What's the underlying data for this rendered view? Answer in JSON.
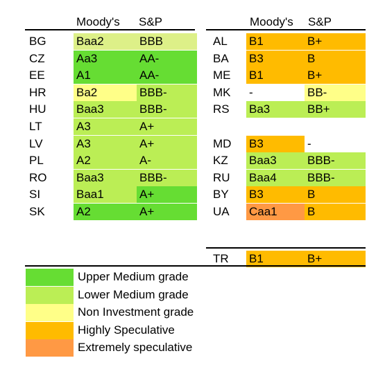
{
  "headers": {
    "moodys": "Moody's",
    "sp": "S&P"
  },
  "left_table": [
    {
      "country": "BG",
      "moodys": "Baa2",
      "sp": "BBB",
      "moodys_color": "pale",
      "sp_color": "pale"
    },
    {
      "country": "CZ",
      "moodys": "Aa3",
      "sp": "AA-",
      "moodys_color": "upper",
      "sp_color": "upper"
    },
    {
      "country": "EE",
      "moodys": "A1",
      "sp": "AA-",
      "moodys_color": "upper",
      "sp_color": "upper"
    },
    {
      "country": "HR",
      "moodys": "Ba2",
      "sp": "BBB-",
      "moodys_color": "non",
      "sp_color": "lower"
    },
    {
      "country": "HU",
      "moodys": "Baa3",
      "sp": "BBB-",
      "moodys_color": "lower",
      "sp_color": "lower"
    },
    {
      "country": "LT",
      "moodys": "A3",
      "sp": "A+",
      "moodys_color": "lower",
      "sp_color": "lower"
    },
    {
      "country": "LV",
      "moodys": "A3",
      "sp": "A+",
      "moodys_color": "lower",
      "sp_color": "lower"
    },
    {
      "country": "PL",
      "moodys": "A2",
      "sp": "A-",
      "moodys_color": "lower",
      "sp_color": "lower"
    },
    {
      "country": "RO",
      "moodys": "Baa3",
      "sp": "BBB-",
      "moodys_color": "lower",
      "sp_color": "lower"
    },
    {
      "country": "SI",
      "moodys": "Baa1",
      "sp": "A+",
      "moodys_color": "lower",
      "sp_color": "upper"
    },
    {
      "country": "SK",
      "moodys": "A2",
      "sp": "A+",
      "moodys_color": "upper",
      "sp_color": "upper"
    }
  ],
  "right_table": [
    {
      "country": "AL",
      "moodys": "B1",
      "sp": "B+",
      "moodys_color": "high",
      "sp_color": "high"
    },
    {
      "country": "BA",
      "moodys": "B3",
      "sp": "B",
      "moodys_color": "high",
      "sp_color": "high"
    },
    {
      "country": "ME",
      "moodys": "B1",
      "sp": "B+",
      "moodys_color": "high",
      "sp_color": "high"
    },
    {
      "country": "MK",
      "moodys": "-",
      "sp": "BB-",
      "moodys_color": "none",
      "sp_color": "non"
    },
    {
      "country": "RS",
      "moodys": "Ba3",
      "sp": "BB+",
      "moodys_color": "lower",
      "sp_color": "lower"
    },
    {
      "country": "",
      "moodys": "",
      "sp": "",
      "moodys_color": "none",
      "sp_color": "none"
    },
    {
      "country": "MD",
      "moodys": "B3",
      "sp": "-",
      "moodys_color": "high",
      "sp_color": "none"
    },
    {
      "country": "KZ",
      "moodys": "Baa3",
      "sp": "BBB-",
      "moodys_color": "lower",
      "sp_color": "lower"
    },
    {
      "country": "RU",
      "moodys": "Baa4",
      "sp": "BBB-",
      "moodys_color": "lower",
      "sp_color": "lower"
    },
    {
      "country": "BY",
      "moodys": "B3",
      "sp": "B",
      "moodys_color": "high",
      "sp_color": "high"
    },
    {
      "country": "UA",
      "moodys": "Caa1",
      "sp": "B",
      "moodys_color": "ext",
      "sp_color": "high"
    }
  ],
  "tr_row": {
    "country": "TR",
    "moodys": "B1",
    "sp": "B+",
    "moodys_color": "high",
    "sp_color": "high"
  },
  "legend": [
    {
      "color": "upper",
      "label": "Upper Medium grade"
    },
    {
      "color": "lower",
      "label": "Lower Medium grade"
    },
    {
      "color": "non",
      "label": "Non Investment grade"
    },
    {
      "color": "high",
      "label": "Highly Speculative"
    },
    {
      "color": "ext",
      "label": "Extremely speculative"
    }
  ],
  "colors": {
    "upper": "#66dd33",
    "lower": "#bbee55",
    "non": "#ffff88",
    "high": "#ffbb00",
    "ext": "#ff9944",
    "pale": "#ddf088"
  }
}
